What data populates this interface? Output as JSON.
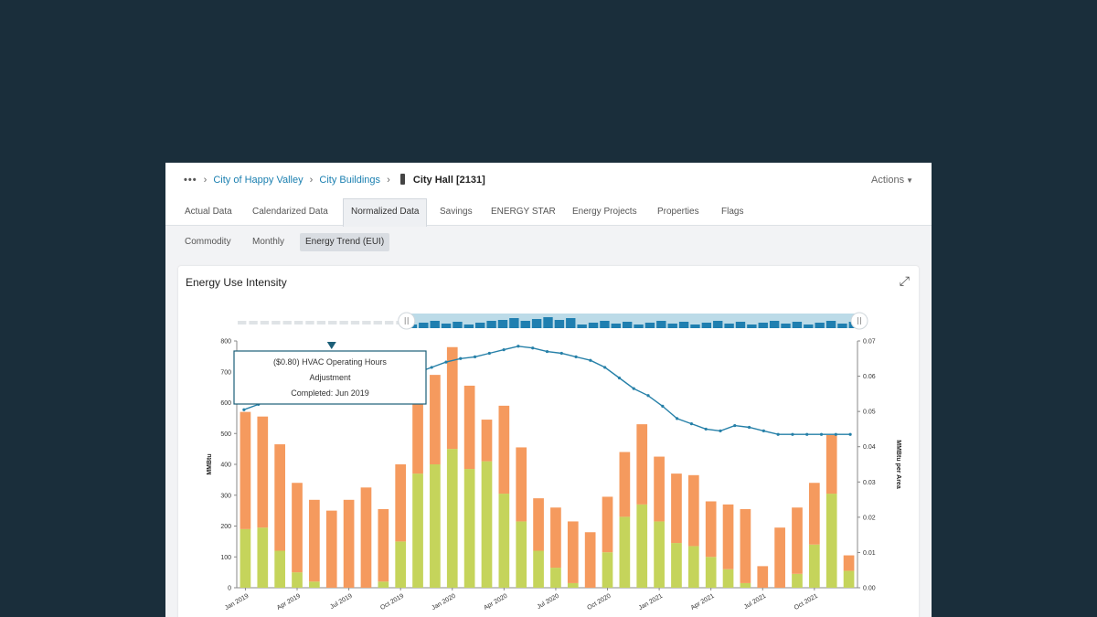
{
  "breadcrumb": {
    "overflow": "•••",
    "items": [
      "City of Happy Valley",
      "City Buildings"
    ],
    "current": "City Hall [2131]"
  },
  "actions_label": "Actions",
  "tabs": [
    "Actual Data",
    "Calendarized Data",
    "Normalized Data",
    "Savings",
    "ENERGY STAR",
    "Energy Projects",
    "Properties",
    "Flags"
  ],
  "active_tab": "Normalized Data",
  "subtabs": [
    "Commodity",
    "Monthly",
    "Energy Trend (EUI)"
  ],
  "active_subtab": "Energy Trend (EUI)",
  "card_title": "Energy Use Intensity",
  "colors": {
    "background": "#1a2e3b",
    "bar_green": "#c5d45b",
    "bar_orange": "#f59a5e",
    "line": "#2680a8",
    "link": "#1a7fb0",
    "navigator": "#bcdbe8"
  },
  "tooltip": {
    "lines": [
      "($0.80) HVAC Operating Hours",
      "Adjustment",
      "Completed: Jun 2019"
    ]
  },
  "chart_data": {
    "type": "bar",
    "stacked": true,
    "ylabel": "MMBtu",
    "y2label": "MMBtu per Area",
    "ylim": [
      0,
      800
    ],
    "y2lim": [
      0,
      0.07
    ],
    "yticks": [
      0,
      100,
      200,
      300,
      400,
      500,
      600,
      700,
      800
    ],
    "y2ticks": [
      "0.00",
      "0.01",
      "0.02",
      "0.03",
      "0.04",
      "0.05",
      "0.06",
      "0.07"
    ],
    "xtick_labels": [
      "Jan 2019",
      "Apr 2019",
      "Jul 2019",
      "Oct 2019",
      "Jan 2020",
      "Apr 2020",
      "Jul 2020",
      "Oct 2020",
      "Jan 2021",
      "Apr 2021",
      "Jul 2021",
      "Oct 2021"
    ],
    "series": [
      {
        "values": [
          190,
          195,
          120,
          50,
          20,
          0,
          0,
          0,
          20,
          150,
          370,
          400,
          450,
          385,
          410,
          305,
          215,
          120,
          65,
          15,
          0,
          115,
          230,
          270,
          215,
          145,
          135,
          100,
          60,
          15,
          0,
          0,
          45,
          140,
          305,
          55
        ]
      },
      {
        "values": [
          380,
          360,
          345,
          290,
          265,
          250,
          285,
          325,
          235,
          250,
          265,
          290,
          330,
          270,
          135,
          285,
          240,
          170,
          195,
          200,
          180,
          180,
          210,
          260,
          210,
          225,
          230,
          180,
          210,
          240,
          70,
          195,
          215,
          200,
          190,
          50
        ]
      }
    ],
    "line": [
      0.0505,
      0.052,
      0.0535,
      0.055,
      0.0545,
      0.0535,
      0.054,
      0.0545,
      0.0555,
      0.0565,
      0.058,
      0.0595,
      0.061,
      0.0625,
      0.064,
      0.065,
      0.0655,
      0.0665,
      0.0675,
      0.0685,
      0.068,
      0.067,
      0.0665,
      0.0655,
      0.0645,
      0.0625,
      0.0595,
      0.0565,
      0.0545,
      0.0515,
      0.048,
      0.0465,
      0.045,
      0.0445,
      0.046,
      0.0455,
      0.0445,
      0.0435,
      0.0435,
      0.0435,
      0.0435,
      0.0435,
      0.0435
    ],
    "annotation": {
      "month_index": 5,
      "label": "($0.80) HVAC Operating Hours Adjustment Completed: Jun 2019"
    },
    "navigator": {
      "selected_from_index": 15,
      "selected_to_index": 53
    }
  }
}
